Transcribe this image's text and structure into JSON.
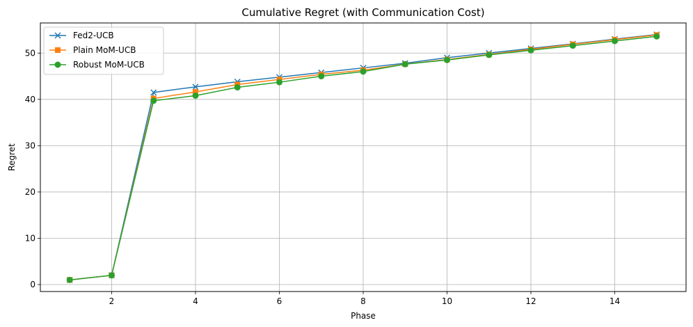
{
  "chart_data": {
    "type": "line",
    "title": "Cumulative Regret (with Communication Cost)",
    "xlabel": "Phase",
    "ylabel": "Regret",
    "xlim": [
      0.3,
      15.7
    ],
    "ylim": [
      -1.5,
      56.5
    ],
    "xticks": [
      2,
      4,
      6,
      8,
      10,
      12,
      14
    ],
    "yticks": [
      0,
      10,
      20,
      30,
      40,
      50
    ],
    "grid": true,
    "legend_position": "top-left",
    "x": [
      1,
      2,
      3,
      4,
      5,
      6,
      7,
      8,
      9,
      10,
      11,
      12,
      13,
      14,
      15
    ],
    "series": [
      {
        "name": "Fed2-UCB",
        "color": "#1f77b4",
        "marker": "x",
        "values": [
          1.0,
          2.0,
          41.5,
          42.7,
          43.8,
          44.8,
          45.8,
          46.8,
          47.8,
          49.0,
          50.0,
          51.0,
          52.0,
          53.0,
          54.0
        ]
      },
      {
        "name": "Plain MoM-UCB",
        "color": "#ff7f0e",
        "marker": "square",
        "values": [
          1.0,
          2.0,
          40.2,
          41.6,
          43.2,
          44.3,
          45.4,
          46.3,
          47.6,
          48.6,
          49.7,
          50.8,
          51.9,
          52.9,
          53.9
        ]
      },
      {
        "name": "Robust MoM-UCB",
        "color": "#2ca02c",
        "marker": "circle",
        "values": [
          1.0,
          2.0,
          39.7,
          40.8,
          42.6,
          43.7,
          45.0,
          46.0,
          47.6,
          48.5,
          49.6,
          50.6,
          51.6,
          52.6,
          53.6
        ]
      }
    ]
  }
}
